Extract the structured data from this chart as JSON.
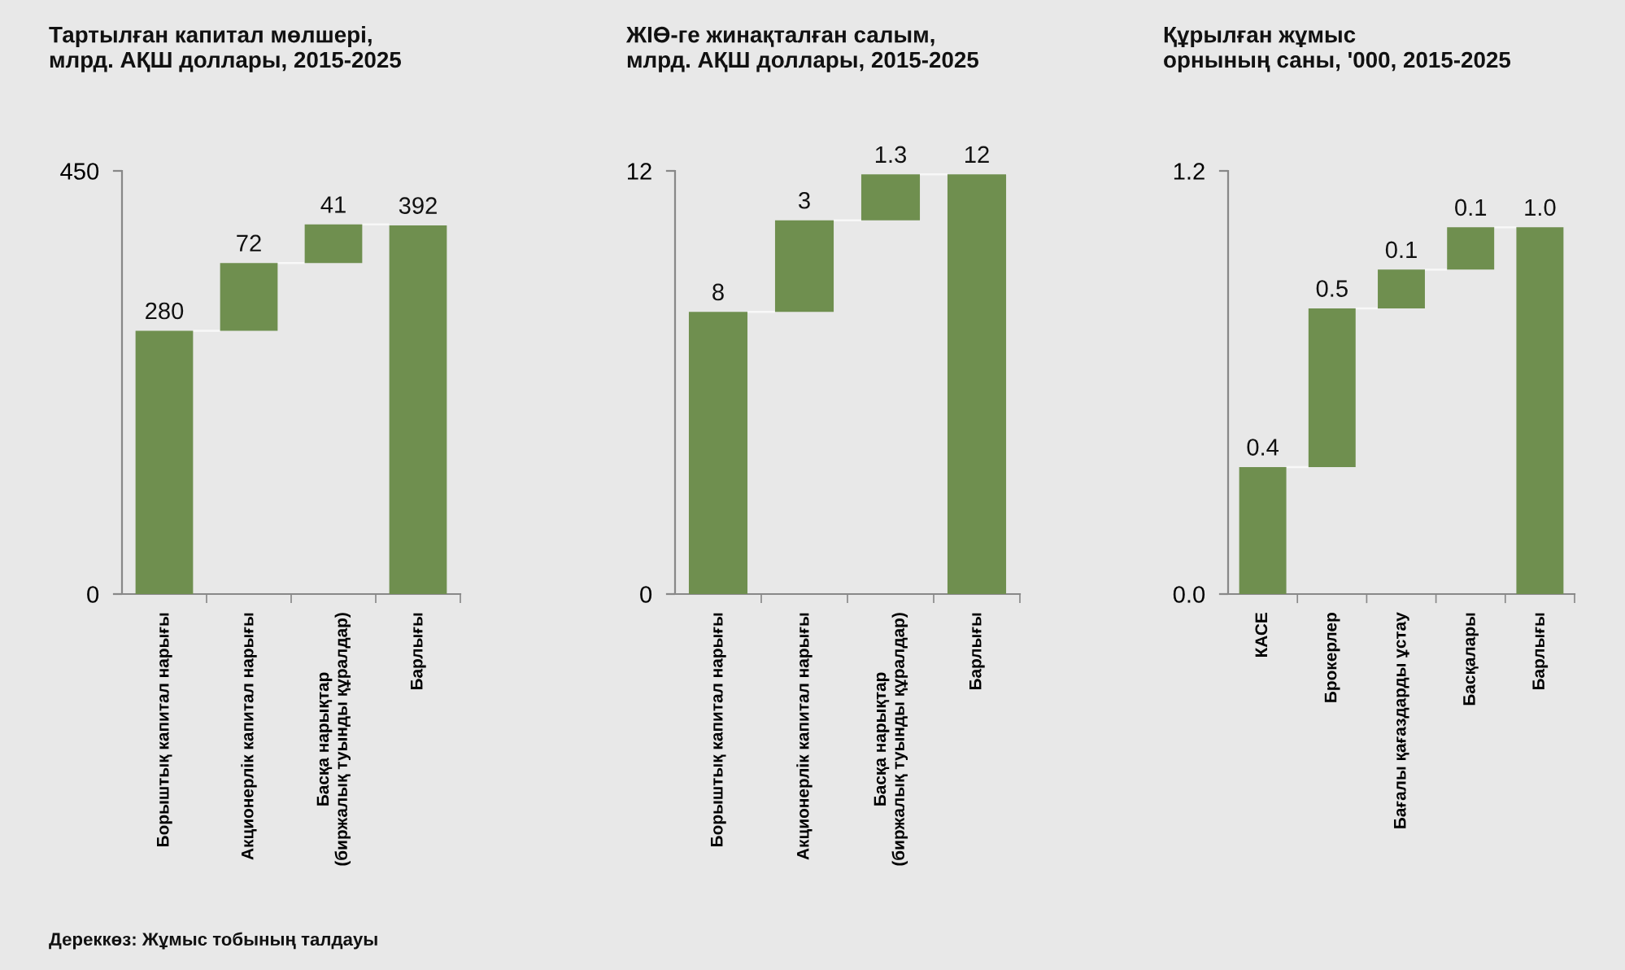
{
  "chart_data": [
    {
      "type": "bar",
      "title": "Тартылған капитал мөлшері,\nмлрд. АҚШ доллары, 2015-2025",
      "categories": [
        "Борыштық капитал нарығы",
        "Акционерлік капитал нарығы",
        "Басқа нарықтар\n(биржалық туынды құралдар)",
        "Барлығы"
      ],
      "values": [
        280,
        72,
        41,
        392
      ],
      "base": [
        0,
        280,
        352,
        0
      ],
      "color": "#6f8f4f",
      "ylim": [
        0,
        450
      ],
      "yticks": [
        0,
        450
      ],
      "data_labels": true,
      "annotations": [
        "Дереккөз: Жұмыс тобының талдауы"
      ]
    },
    {
      "type": "bar",
      "title": "ЖІӨ-ге жинақталған салым,\nмлрд. АҚШ доллары, 2015-2025",
      "categories": [
        "Борыштық капитал нарығы",
        "Акционерлік капитал нарығы",
        "Басқа нарықтар\n(биржалық туынды құралдар)",
        "Барлығы"
      ],
      "values": [
        8.0,
        2.6,
        1.3,
        11.9
      ],
      "base": [
        0,
        8.0,
        10.6,
        0
      ],
      "color": "#6f8f4f",
      "ylim": [
        0,
        12
      ],
      "yticks": [
        0,
        12
      ],
      "value_labels": [
        "8",
        "3",
        "1.3",
        "12"
      ]
    },
    {
      "type": "bar",
      "title": "Құрылған жұмыс\nорнының саны, '000, 2015-2025",
      "categories": [
        "КАСЕ",
        "Брокерлер",
        "Бағалы қағаздарды ұстау",
        "Басқалары",
        "Барлығы"
      ],
      "values": [
        0.36,
        0.45,
        0.11,
        0.12,
        1.04
      ],
      "base": [
        0,
        0.36,
        0.81,
        0.92,
        0
      ],
      "color": "#6f8f4f",
      "ylim": [
        0,
        1.2
      ],
      "yticks": [
        {
          "value": 0,
          "label": "0.0"
        },
        {
          "value": 1.2,
          "label": "1.2"
        }
      ],
      "value_labels": [
        "0.4",
        "0.5",
        "0.1",
        "0.1",
        "1.0"
      ]
    }
  ]
}
